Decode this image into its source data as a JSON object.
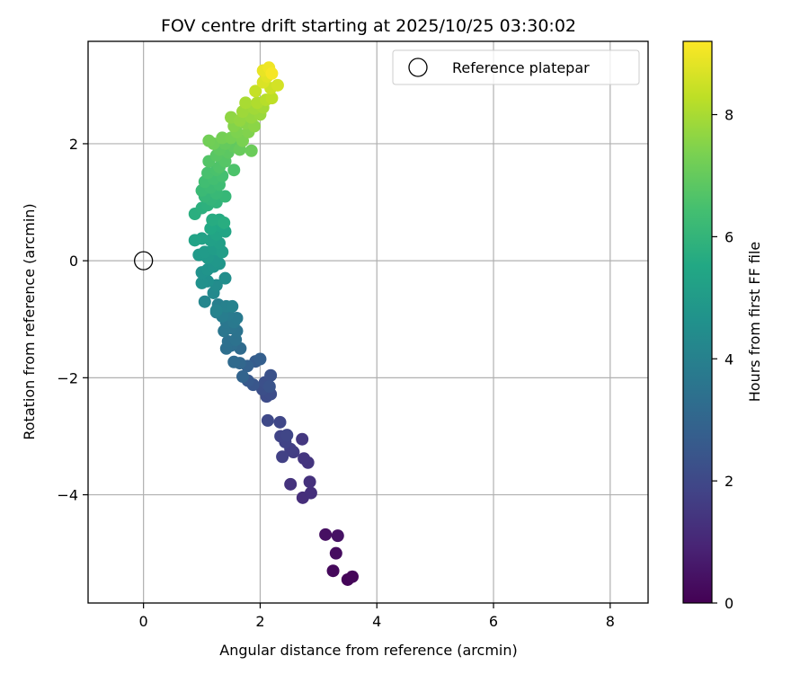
{
  "chart_data": {
    "type": "scatter",
    "title": "FOV centre drift starting at 2025/10/25 03:30:02",
    "xlabel": "Angular distance from reference (arcmin)",
    "ylabel": "Rotation from reference (arcmin)",
    "xlim": [
      -0.95,
      8.65
    ],
    "ylim": [
      -5.85,
      3.75
    ],
    "xticks": [
      0,
      2,
      4,
      6,
      8
    ],
    "xtick_labels": [
      "0",
      "2",
      "4",
      "6",
      "8"
    ],
    "yticks": [
      2,
      0,
      -2,
      -4
    ],
    "ytick_labels": [
      "2",
      "0",
      "−2",
      "−4"
    ],
    "grid": true,
    "legend": {
      "label": "Reference platepar",
      "location": "upper right"
    },
    "reference_point": {
      "x": 0,
      "y": 0,
      "label": "Reference platepar"
    },
    "colorbar": {
      "label": "Hours from first FF file",
      "range": [
        0,
        9.2
      ],
      "ticks": [
        0,
        2,
        4,
        6,
        8
      ],
      "tick_labels": [
        "0",
        "2",
        "4",
        "6",
        "8"
      ],
      "colormap": "viridis"
    },
    "points": [
      [
        3.5,
        -5.45,
        0.1
      ],
      [
        3.58,
        -5.4,
        0.15
      ],
      [
        3.25,
        -5.3,
        0.2
      ],
      [
        3.3,
        -5.0,
        0.3
      ],
      [
        3.12,
        -4.68,
        0.4
      ],
      [
        3.33,
        -4.7,
        0.45
      ],
      [
        2.73,
        -4.05,
        1.2
      ],
      [
        2.87,
        -3.97,
        1.25
      ],
      [
        2.85,
        -3.78,
        1.3
      ],
      [
        2.52,
        -3.82,
        1.35
      ],
      [
        2.82,
        -3.45,
        1.4
      ],
      [
        2.75,
        -3.38,
        1.45
      ],
      [
        2.72,
        -3.05,
        1.5
      ],
      [
        2.57,
        -3.27,
        1.65
      ],
      [
        2.52,
        -3.22,
        1.7
      ],
      [
        2.38,
        -3.35,
        1.75
      ],
      [
        2.43,
        -3.1,
        1.8
      ],
      [
        2.35,
        -3.0,
        1.85
      ],
      [
        2.46,
        -2.98,
        1.9
      ],
      [
        2.34,
        -2.76,
        1.95
      ],
      [
        2.13,
        -2.73,
        2.0
      ],
      [
        2.11,
        -2.32,
        2.1
      ],
      [
        2.18,
        -2.28,
        2.15
      ],
      [
        2.04,
        -2.2,
        2.2
      ],
      [
        2.08,
        -2.08,
        2.25
      ],
      [
        2.18,
        -1.96,
        2.3
      ],
      [
        2.16,
        -2.15,
        2.35
      ],
      [
        1.88,
        -2.12,
        2.45
      ],
      [
        1.79,
        -2.05,
        2.55
      ],
      [
        1.92,
        -1.72,
        2.65
      ],
      [
        2.0,
        -1.68,
        2.75
      ],
      [
        1.78,
        -1.8,
        2.85
      ],
      [
        1.7,
        -1.98,
        2.95
      ],
      [
        1.65,
        -1.75,
        3.05
      ],
      [
        1.55,
        -1.73,
        3.15
      ],
      [
        1.66,
        -1.5,
        3.2
      ],
      [
        1.5,
        -1.45,
        3.3
      ],
      [
        1.42,
        -1.5,
        3.35
      ],
      [
        1.45,
        -1.38,
        3.4
      ],
      [
        1.58,
        -1.35,
        3.45
      ],
      [
        1.6,
        -1.2,
        3.5
      ],
      [
        1.5,
        -1.15,
        3.55
      ],
      [
        1.38,
        -1.2,
        3.6
      ],
      [
        1.42,
        -1.05,
        3.65
      ],
      [
        1.55,
        -1.05,
        3.7
      ],
      [
        1.6,
        -0.98,
        3.75
      ],
      [
        1.45,
        -0.92,
        3.8
      ],
      [
        1.35,
        -0.95,
        3.85
      ],
      [
        1.25,
        -0.88,
        3.9
      ],
      [
        1.28,
        -0.75,
        3.95
      ],
      [
        1.42,
        -0.78,
        4.0
      ],
      [
        1.52,
        -0.78,
        4.05
      ],
      [
        1.25,
        -0.85,
        4.1
      ],
      [
        1.05,
        -0.7,
        4.2
      ],
      [
        1.2,
        -0.55,
        4.3
      ],
      [
        1.25,
        -0.42,
        4.4
      ],
      [
        1.4,
        -0.3,
        4.5
      ],
      [
        1.1,
        -0.35,
        4.55
      ],
      [
        1.0,
        -0.38,
        4.6
      ],
      [
        1.0,
        -0.2,
        4.65
      ],
      [
        1.1,
        -0.15,
        4.7
      ],
      [
        1.2,
        -0.1,
        4.75
      ],
      [
        1.3,
        -0.05,
        4.8
      ],
      [
        1.25,
        0.0,
        4.85
      ],
      [
        1.1,
        0.05,
        4.9
      ],
      [
        0.95,
        0.1,
        4.95
      ],
      [
        1.05,
        0.15,
        5.0
      ],
      [
        1.2,
        0.2,
        5.05
      ],
      [
        1.35,
        0.15,
        5.1
      ],
      [
        1.3,
        0.3,
        5.15
      ],
      [
        1.15,
        0.35,
        5.2
      ],
      [
        1.0,
        0.38,
        5.25
      ],
      [
        0.88,
        0.35,
        5.3
      ],
      [
        1.25,
        0.45,
        5.35
      ],
      [
        1.4,
        0.5,
        5.4
      ],
      [
        1.3,
        0.6,
        5.45
      ],
      [
        1.15,
        0.55,
        5.5
      ],
      [
        1.3,
        0.7,
        5.6
      ],
      [
        1.18,
        0.7,
        5.65
      ],
      [
        1.38,
        0.65,
        5.7
      ],
      [
        0.88,
        0.8,
        5.75
      ],
      [
        1.0,
        0.9,
        5.8
      ],
      [
        1.1,
        0.95,
        5.85
      ],
      [
        1.25,
        1.0,
        5.95
      ],
      [
        1.15,
        1.05,
        6.0
      ],
      [
        1.05,
        1.1,
        6.05
      ],
      [
        1.4,
        1.1,
        6.1
      ],
      [
        1.25,
        1.15,
        6.15
      ],
      [
        1.0,
        1.2,
        6.2
      ],
      [
        1.15,
        1.25,
        6.25
      ],
      [
        1.3,
        1.3,
        6.3
      ],
      [
        1.05,
        1.35,
        6.35
      ],
      [
        1.2,
        1.4,
        6.4
      ],
      [
        1.35,
        1.45,
        6.45
      ],
      [
        1.1,
        1.5,
        6.5
      ],
      [
        1.25,
        1.55,
        6.55
      ],
      [
        1.55,
        1.55,
        6.6
      ],
      [
        1.3,
        1.6,
        6.65
      ],
      [
        1.12,
        1.7,
        6.7
      ],
      [
        1.4,
        1.7,
        6.75
      ],
      [
        1.25,
        1.8,
        6.8
      ],
      [
        1.45,
        1.85,
        6.85
      ],
      [
        1.3,
        1.9,
        6.9
      ],
      [
        1.55,
        1.95,
        6.95
      ],
      [
        1.4,
        2.0,
        7.0
      ],
      [
        1.65,
        1.9,
        7.05
      ],
      [
        1.85,
        1.88,
        7.1
      ],
      [
        1.2,
        2.0,
        7.15
      ],
      [
        1.12,
        2.05,
        7.2
      ],
      [
        1.35,
        2.1,
        7.25
      ],
      [
        1.5,
        2.1,
        7.3
      ],
      [
        1.7,
        2.05,
        7.35
      ],
      [
        1.6,
        2.2,
        7.4
      ],
      [
        1.8,
        2.2,
        7.45
      ],
      [
        1.55,
        2.3,
        7.5
      ],
      [
        1.75,
        2.35,
        7.55
      ],
      [
        1.9,
        2.3,
        7.6
      ],
      [
        1.5,
        2.45,
        7.65
      ],
      [
        1.65,
        2.4,
        7.7
      ],
      [
        1.85,
        2.45,
        7.75
      ],
      [
        2.0,
        2.5,
        7.8
      ],
      [
        1.7,
        2.55,
        7.85
      ],
      [
        1.9,
        2.6,
        7.9
      ],
      [
        2.05,
        2.62,
        7.95
      ],
      [
        1.75,
        2.7,
        8.0
      ],
      [
        1.95,
        2.7,
        8.1
      ],
      [
        2.1,
        2.75,
        8.2
      ],
      [
        2.2,
        2.78,
        8.3
      ],
      [
        1.92,
        2.9,
        8.4
      ],
      [
        2.18,
        2.95,
        8.5
      ],
      [
        2.3,
        3.0,
        8.6
      ],
      [
        2.05,
        3.05,
        8.7
      ],
      [
        2.12,
        3.15,
        8.8
      ],
      [
        2.05,
        3.25,
        8.9
      ],
      [
        2.15,
        3.3,
        9.0
      ],
      [
        2.2,
        3.2,
        9.1
      ]
    ]
  }
}
